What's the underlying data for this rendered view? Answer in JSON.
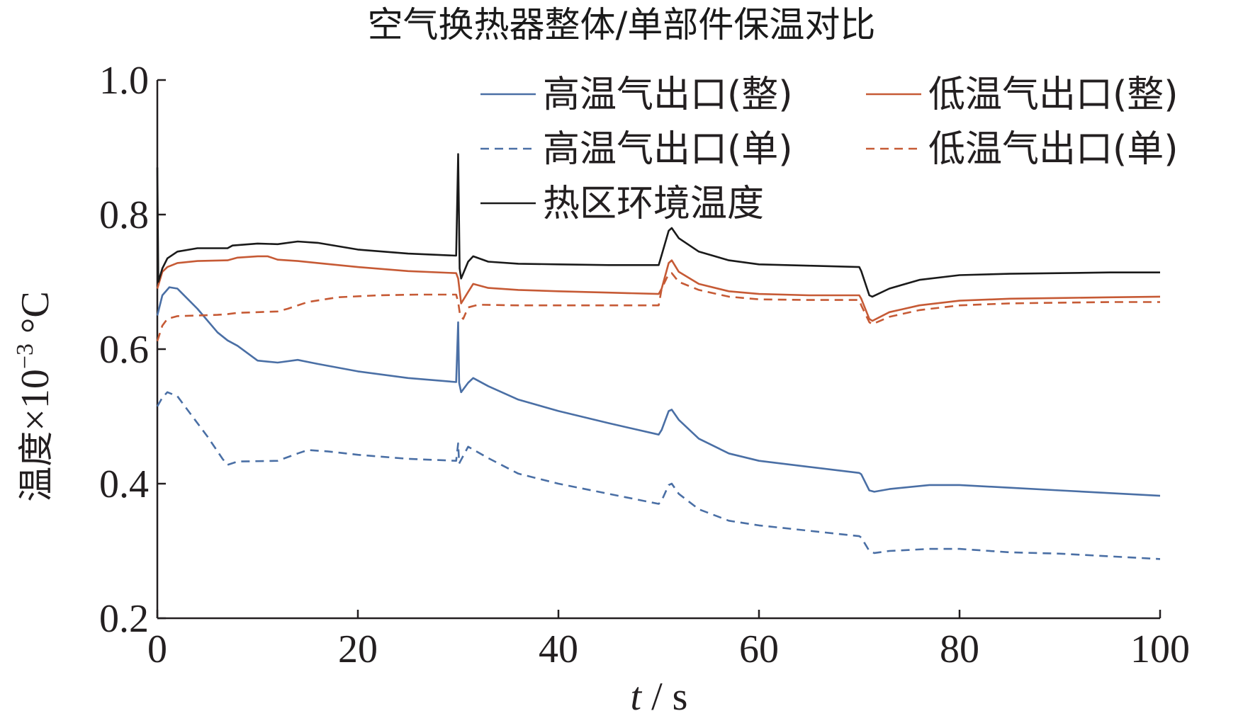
{
  "chart_data": {
    "type": "line",
    "title": "空气换热器整体/单部件保温对比",
    "xlabel": "t / s",
    "xlabel_italic": "t",
    "xlabel_rest": " / s",
    "ylabel": "温度×10⁻³ ℃",
    "ylabel_cn": "温度",
    "ylabel_mult": "×10",
    "ylabel_exp": "−3",
    "ylabel_unit": " °C",
    "xlim": [
      0,
      100
    ],
    "ylim": [
      0.2,
      1.0
    ],
    "x_ticks": [
      0,
      20,
      40,
      60,
      80,
      100
    ],
    "x_tick_labels": [
      "0",
      "20",
      "40",
      "60",
      "80",
      "100"
    ],
    "y_ticks": [
      0.2,
      0.4,
      0.6,
      0.8,
      1.0
    ],
    "y_tick_labels": [
      "0.2",
      "0.4",
      "0.6",
      "0.8",
      "1.0"
    ],
    "grid": false,
    "legend_position": "top-right",
    "series": [
      {
        "name": "高温气出口(整)",
        "color": "#4a6fa5",
        "dash": "solid",
        "points": [
          [
            0,
            0.65
          ],
          [
            0.5,
            0.68
          ],
          [
            1.2,
            0.692
          ],
          [
            2,
            0.69
          ],
          [
            4,
            0.66
          ],
          [
            6,
            0.625
          ],
          [
            7,
            0.613
          ],
          [
            8,
            0.605
          ],
          [
            10,
            0.583
          ],
          [
            12,
            0.58
          ],
          [
            14,
            0.584
          ],
          [
            16,
            0.578
          ],
          [
            20,
            0.567
          ],
          [
            25,
            0.557
          ],
          [
            29.8,
            0.551
          ],
          [
            30,
            0.64
          ],
          [
            30.1,
            0.55
          ],
          [
            30.3,
            0.536
          ],
          [
            31,
            0.55
          ],
          [
            31.5,
            0.557
          ],
          [
            33,
            0.545
          ],
          [
            36,
            0.525
          ],
          [
            40,
            0.508
          ],
          [
            45,
            0.49
          ],
          [
            50,
            0.473
          ],
          [
            50.3,
            0.48
          ],
          [
            51,
            0.508
          ],
          [
            51.3,
            0.51
          ],
          [
            52,
            0.495
          ],
          [
            54,
            0.467
          ],
          [
            57,
            0.445
          ],
          [
            60,
            0.434
          ],
          [
            65,
            0.425
          ],
          [
            70,
            0.416
          ],
          [
            70.2,
            0.414
          ],
          [
            71,
            0.39
          ],
          [
            71.5,
            0.388
          ],
          [
            73,
            0.392
          ],
          [
            77,
            0.398
          ],
          [
            80,
            0.398
          ],
          [
            85,
            0.394
          ],
          [
            90,
            0.39
          ],
          [
            95,
            0.386
          ],
          [
            100,
            0.382
          ]
        ]
      },
      {
        "name": "低温气出口(整)",
        "color": "#c65a35",
        "dash": "solid",
        "points": [
          [
            0,
            0.69
          ],
          [
            0.5,
            0.715
          ],
          [
            1,
            0.722
          ],
          [
            2,
            0.728
          ],
          [
            4,
            0.731
          ],
          [
            7,
            0.732
          ],
          [
            8,
            0.736
          ],
          [
            10,
            0.738
          ],
          [
            11,
            0.738
          ],
          [
            12,
            0.733
          ],
          [
            14,
            0.731
          ],
          [
            16,
            0.728
          ],
          [
            20,
            0.722
          ],
          [
            25,
            0.716
          ],
          [
            29.8,
            0.713
          ],
          [
            30,
            0.705
          ],
          [
            30.3,
            0.668
          ],
          [
            31,
            0.685
          ],
          [
            31.5,
            0.697
          ],
          [
            33,
            0.691
          ],
          [
            36,
            0.688
          ],
          [
            40,
            0.686
          ],
          [
            45,
            0.684
          ],
          [
            50,
            0.682
          ],
          [
            50.3,
            0.69
          ],
          [
            51,
            0.728
          ],
          [
            51.3,
            0.732
          ],
          [
            52,
            0.715
          ],
          [
            54,
            0.697
          ],
          [
            57,
            0.686
          ],
          [
            60,
            0.682
          ],
          [
            65,
            0.68
          ],
          [
            70,
            0.68
          ],
          [
            70.2,
            0.675
          ],
          [
            71,
            0.645
          ],
          [
            71.3,
            0.642
          ],
          [
            73,
            0.655
          ],
          [
            76,
            0.665
          ],
          [
            80,
            0.672
          ],
          [
            85,
            0.675
          ],
          [
            90,
            0.676
          ],
          [
            95,
            0.677
          ],
          [
            100,
            0.678
          ]
        ]
      },
      {
        "name": "高温气出口(单)",
        "color": "#4a6fa5",
        "dash": "dashed",
        "points": [
          [
            0,
            0.515
          ],
          [
            0.5,
            0.528
          ],
          [
            1,
            0.536
          ],
          [
            2,
            0.53
          ],
          [
            3,
            0.51
          ],
          [
            5,
            0.47
          ],
          [
            6.5,
            0.437
          ],
          [
            7,
            0.428
          ],
          [
            8,
            0.433
          ],
          [
            12,
            0.434
          ],
          [
            14,
            0.445
          ],
          [
            15,
            0.45
          ],
          [
            17,
            0.448
          ],
          [
            20,
            0.443
          ],
          [
            25,
            0.437
          ],
          [
            29.8,
            0.434
          ],
          [
            30,
            0.46
          ],
          [
            30.1,
            0.43
          ],
          [
            31,
            0.455
          ],
          [
            33,
            0.438
          ],
          [
            36,
            0.415
          ],
          [
            40,
            0.4
          ],
          [
            45,
            0.385
          ],
          [
            50,
            0.37
          ],
          [
            50.3,
            0.375
          ],
          [
            51,
            0.398
          ],
          [
            51.3,
            0.4
          ],
          [
            52,
            0.385
          ],
          [
            54,
            0.362
          ],
          [
            57,
            0.345
          ],
          [
            60,
            0.338
          ],
          [
            65,
            0.33
          ],
          [
            70,
            0.322
          ],
          [
            70.2,
            0.32
          ],
          [
            71,
            0.3
          ],
          [
            71.5,
            0.297
          ],
          [
            73,
            0.3
          ],
          [
            77,
            0.303
          ],
          [
            80,
            0.303
          ],
          [
            85,
            0.298
          ],
          [
            90,
            0.296
          ],
          [
            95,
            0.292
          ],
          [
            100,
            0.288
          ]
        ]
      },
      {
        "name": "低温气出口(单)",
        "color": "#c65a35",
        "dash": "dashed",
        "points": [
          [
            0,
            0.612
          ],
          [
            0.5,
            0.635
          ],
          [
            1,
            0.645
          ],
          [
            2,
            0.649
          ],
          [
            4,
            0.65
          ],
          [
            6,
            0.651
          ],
          [
            7,
            0.652
          ],
          [
            8,
            0.654
          ],
          [
            10,
            0.655
          ],
          [
            12,
            0.656
          ],
          [
            13,
            0.66
          ],
          [
            15,
            0.67
          ],
          [
            18,
            0.677
          ],
          [
            22,
            0.68
          ],
          [
            26,
            0.681
          ],
          [
            29.8,
            0.681
          ],
          [
            30,
            0.67
          ],
          [
            30.2,
            0.65
          ],
          [
            30.5,
            0.645
          ],
          [
            31,
            0.662
          ],
          [
            32,
            0.666
          ],
          [
            36,
            0.665
          ],
          [
            40,
            0.665
          ],
          [
            45,
            0.665
          ],
          [
            50,
            0.665
          ],
          [
            50.3,
            0.69
          ],
          [
            51,
            0.712
          ],
          [
            51.3,
            0.713
          ],
          [
            52,
            0.7
          ],
          [
            54,
            0.688
          ],
          [
            57,
            0.678
          ],
          [
            60,
            0.674
          ],
          [
            65,
            0.673
          ],
          [
            70,
            0.673
          ],
          [
            70.2,
            0.665
          ],
          [
            71,
            0.64
          ],
          [
            71.3,
            0.637
          ],
          [
            73,
            0.648
          ],
          [
            76,
            0.658
          ],
          [
            80,
            0.665
          ],
          [
            85,
            0.668
          ],
          [
            90,
            0.669
          ],
          [
            95,
            0.67
          ],
          [
            100,
            0.67
          ]
        ]
      },
      {
        "name": "热区环境温度",
        "color": "#1a1a1a",
        "dash": "solid",
        "points": [
          [
            0,
            0.87
          ],
          [
            0.1,
            0.7
          ],
          [
            0.5,
            0.72
          ],
          [
            1,
            0.735
          ],
          [
            2,
            0.745
          ],
          [
            4,
            0.75
          ],
          [
            7,
            0.75
          ],
          [
            7.5,
            0.754
          ],
          [
            10,
            0.757
          ],
          [
            12,
            0.756
          ],
          [
            14,
            0.76
          ],
          [
            16,
            0.758
          ],
          [
            20,
            0.748
          ],
          [
            25,
            0.742
          ],
          [
            29.8,
            0.739
          ],
          [
            30,
            0.89
          ],
          [
            30.15,
            0.72
          ],
          [
            30.3,
            0.705
          ],
          [
            31,
            0.73
          ],
          [
            31.5,
            0.738
          ],
          [
            33,
            0.73
          ],
          [
            36,
            0.727
          ],
          [
            40,
            0.726
          ],
          [
            45,
            0.725
          ],
          [
            50,
            0.725
          ],
          [
            50.3,
            0.74
          ],
          [
            51,
            0.776
          ],
          [
            51.3,
            0.78
          ],
          [
            52,
            0.765
          ],
          [
            54,
            0.745
          ],
          [
            57,
            0.732
          ],
          [
            60,
            0.726
          ],
          [
            65,
            0.724
          ],
          [
            70,
            0.722
          ],
          [
            70.2,
            0.716
          ],
          [
            71,
            0.68
          ],
          [
            71.3,
            0.678
          ],
          [
            73,
            0.69
          ],
          [
            76,
            0.703
          ],
          [
            80,
            0.71
          ],
          [
            85,
            0.712
          ],
          [
            90,
            0.713
          ],
          [
            95,
            0.714
          ],
          [
            100,
            0.714
          ]
        ]
      }
    ]
  }
}
